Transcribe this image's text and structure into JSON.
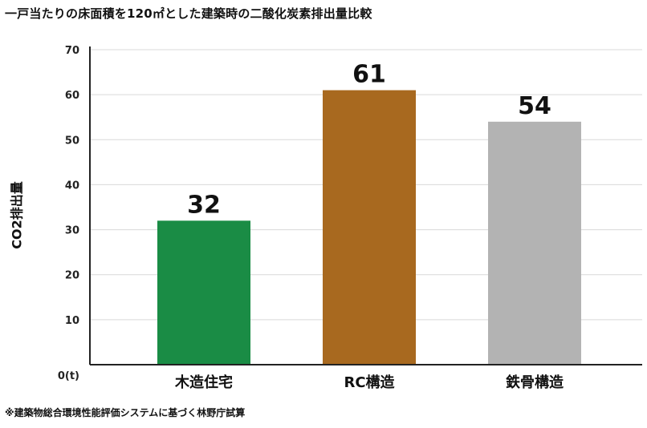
{
  "chart_data": {
    "type": "bar",
    "title": "一戸当たりの床面積を120㎡とした建築時の二酸化炭素排出量比較",
    "ylabel": "CO2排出量",
    "xlabel": "",
    "ylim": [
      0,
      70
    ],
    "yticks": [
      10,
      20,
      30,
      40,
      50,
      60,
      70
    ],
    "zero_label": "0(t)",
    "grid": true,
    "categories": [
      "木造住宅",
      "RC構造",
      "鉄骨構造"
    ],
    "values": [
      32,
      61,
      54
    ],
    "value_labels": [
      "32",
      "61",
      "54"
    ],
    "colors": [
      "#1a8c45",
      "#a8691f",
      "#b3b3b3"
    ],
    "footnote": "※建築物総合環境性能評価システムに基づく林野庁試算"
  }
}
